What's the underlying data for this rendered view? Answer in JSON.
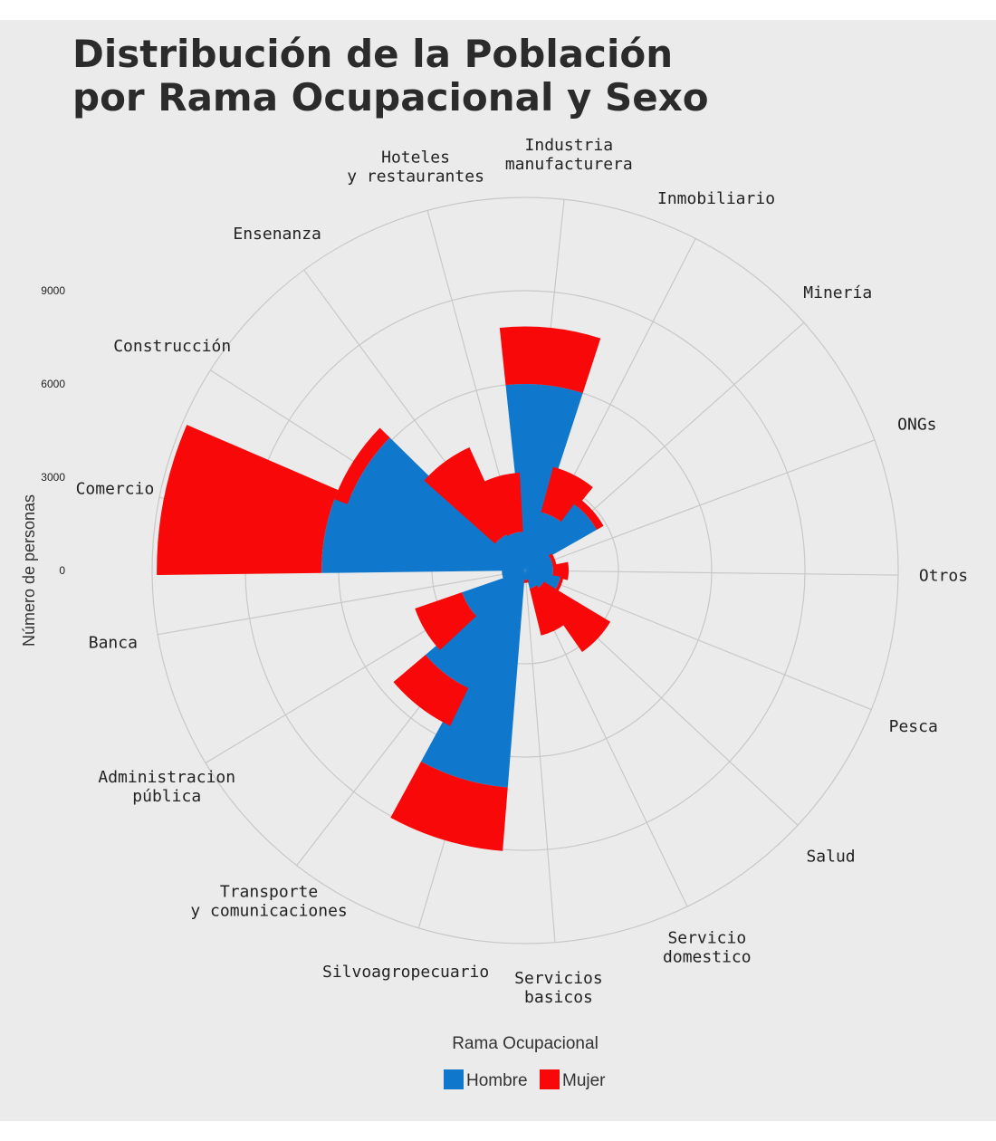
{
  "title": {
    "line1": "Distribución de la Población",
    "line2": "por Rama Ocupacional y Sexo"
  },
  "chart_data": {
    "type": "polar-stacked-bar",
    "title": "Distribución de la Población por Rama Ocupacional y Sexo",
    "radial_axis_label": "Número de personas",
    "radial_ticks": [
      0,
      3000,
      6000,
      9000
    ],
    "radial_range": [
      0,
      12000
    ],
    "grid": true,
    "legend_title": "Rama Ocupacional",
    "legend_position": "bottom",
    "colors": {
      "Hombre": "#0f78cd",
      "Mujer": "#f80808",
      "background": "#ebebeb",
      "grid": "#c8c8c8"
    },
    "categories": [
      "Industria\nmanufacturera",
      "Inmobiliario",
      "Minería",
      "ONGs",
      "Otros",
      "Pesca",
      "Salud",
      "Servicio\ndomestico",
      "Servicios\nbasicos",
      "Silvoagropecuario",
      "Transporte\ny comunicaciones",
      "Administracion\npública",
      "Banca",
      "Comercio",
      "Construcción",
      "Ensenanza",
      "Hoteles\ny restaurantes"
    ],
    "series": [
      {
        "name": "Hombre",
        "values": [
          6000,
          1950,
          2650,
          900,
          900,
          1150,
          700,
          600,
          300,
          7000,
          4200,
          2150,
          750,
          6550,
          6100,
          1300,
          1250
        ]
      },
      {
        "name": "Mujer",
        "values": [
          1850,
          1500,
          250,
          120,
          500,
          100,
          2500,
          1550,
          100,
          2050,
          1350,
          1600,
          0,
          5300,
          450,
          3050,
          1900
        ]
      }
    ]
  },
  "legend": {
    "title": "Rama Ocupacional",
    "items": [
      {
        "label": "Hombre",
        "color": "#0f78cd"
      },
      {
        "label": "Mujer",
        "color": "#f80808"
      }
    ]
  }
}
